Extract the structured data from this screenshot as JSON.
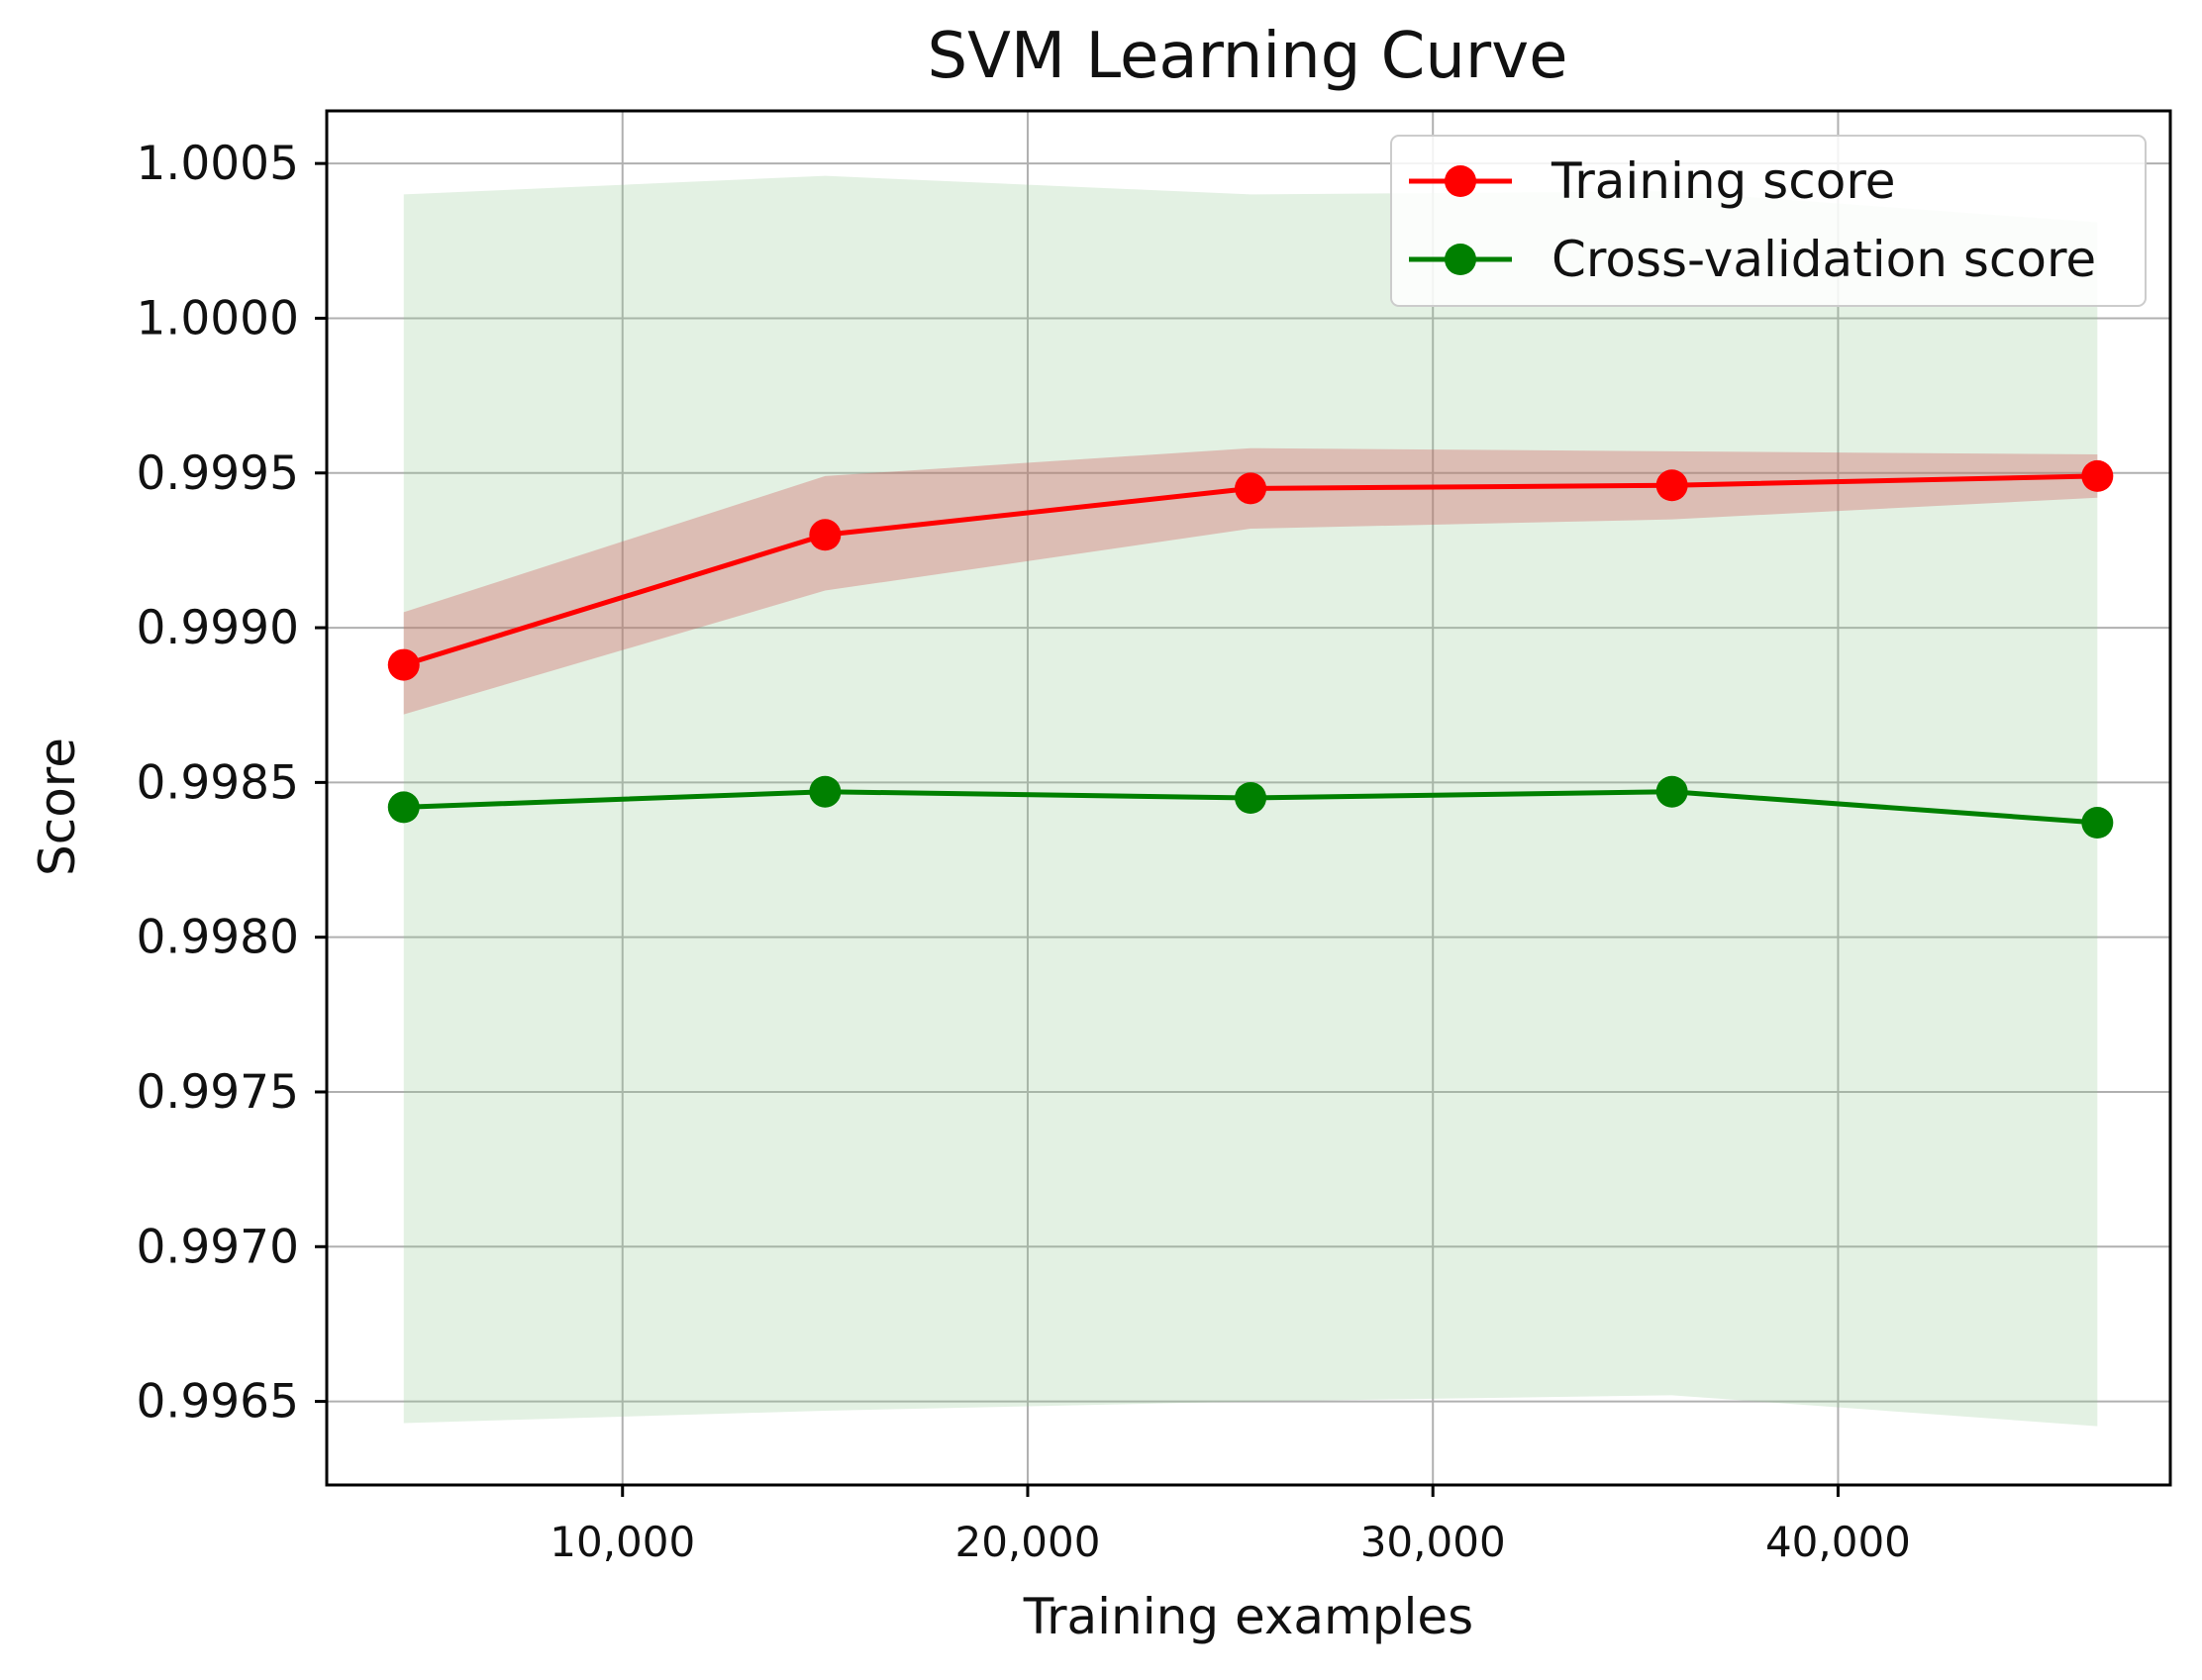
{
  "chart_data": {
    "type": "line",
    "title": "SVM Learning Curve",
    "xlabel": "Training examples",
    "ylabel": "Score",
    "x": [
      4600,
      15000,
      25500,
      35900,
      46400
    ],
    "xlim": [
      2700,
      48200
    ],
    "ylim": [
      0.99623,
      1.00067
    ],
    "xticks": [
      10000,
      20000,
      30000,
      40000
    ],
    "xtick_labels": [
      "10,000",
      "20,000",
      "30,000",
      "40,000"
    ],
    "yticks": [
      0.9965,
      0.997,
      0.9975,
      0.998,
      0.9985,
      0.999,
      0.9995,
      1.0,
      1.0005
    ],
    "ytick_labels": [
      "0.9965",
      "0.9970",
      "0.9975",
      "0.9980",
      "0.9985",
      "0.9990",
      "0.9995",
      "1.0000",
      "1.0005"
    ],
    "grid": true,
    "legend_position": "top-right",
    "series": [
      {
        "name": "Training score",
        "color": "#ff0000",
        "band_color": "#cd5c5c",
        "values": [
          0.99888,
          0.9993,
          0.99945,
          0.99946,
          0.99949
        ],
        "band_lower": [
          0.99872,
          0.99912,
          0.99932,
          0.99935,
          0.99942
        ],
        "band_upper": [
          0.99905,
          0.99949,
          0.99958,
          0.99957,
          0.99956
        ]
      },
      {
        "name": "Cross-validation score",
        "color": "#008000",
        "band_color": "#90c990",
        "values": [
          0.99842,
          0.99847,
          0.99845,
          0.99847,
          0.99837
        ],
        "band_lower": [
          0.99643,
          0.99647,
          0.9965,
          0.99652,
          0.99642
        ],
        "band_upper": [
          1.0004,
          1.00046,
          1.0004,
          1.00041,
          1.00031
        ]
      }
    ]
  }
}
